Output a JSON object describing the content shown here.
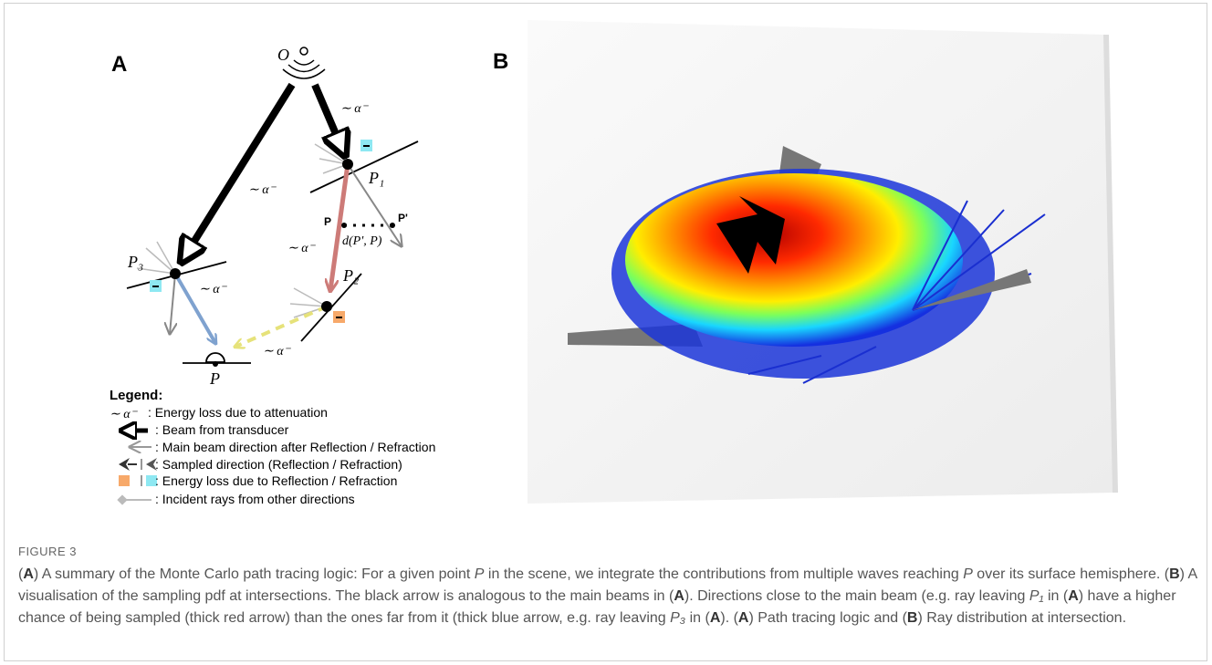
{
  "panel_a": {
    "label": "A",
    "origin": "O",
    "p1": "P₁",
    "p2": "P₂",
    "p3": "P₃",
    "p": "P",
    "p_left": "P",
    "p_prime": "P'",
    "distance": "d(P', P)",
    "attenuation_labels": [
      "∼ α⁻",
      "∼ α⁻",
      "∼ α⁻",
      "∼ α⁻",
      "∼ α⁻"
    ],
    "legend": {
      "title": "Legend:",
      "items": [
        {
          "symbol": "∼ α⁻",
          "text": ": Energy loss due to  attenuation"
        },
        {
          "text": ": Beam from transducer"
        },
        {
          "text": ": Main beam direction after Reflection / Refraction"
        },
        {
          "text": ": Sampled direction (Reflection / Refraction)"
        },
        {
          "text": ": Energy loss due to Reflection / Refraction"
        },
        {
          "text": ": Incident rays from other directions"
        }
      ]
    }
  },
  "panel_b": {
    "label": "B"
  },
  "figure_label": "FIGURE 3",
  "caption": [
    "(",
    "A",
    ") A summary of the Monte Carlo path tracing logic: For a given point ",
    "P",
    " in the scene, we integrate the contributions from multiple waves reaching ",
    "P",
    " over its surface hemisphere. (",
    "B",
    ") A visualisation of the sampling pdf at intersections. The black arrow is analogous to the main beams in (",
    "A",
    "). Directions close to the main beam (e.g. ray leaving ",
    "P₁",
    " in (",
    "A",
    ") have a higher chance of being sampled (thick red arrow) than the ones far from it (thick blue arrow, e.g. ray leaving ",
    "P₃",
    " in (",
    "A",
    "). (",
    "A",
    ") Path tracing logic and (",
    "B",
    ") Ray distribution at intersection."
  ]
}
